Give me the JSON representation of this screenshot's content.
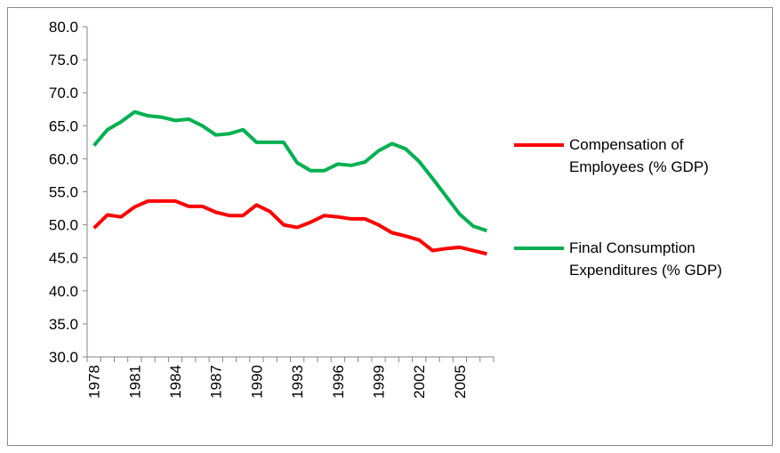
{
  "chart_data": {
    "type": "line",
    "categories": [
      "1978",
      null,
      null,
      "1981",
      null,
      null,
      "1984",
      null,
      null,
      "1987",
      null,
      null,
      "1990",
      null,
      null,
      "1993",
      null,
      null,
      "1996",
      null,
      null,
      "1999",
      null,
      null,
      "2002",
      null,
      null,
      "2005",
      null,
      null
    ],
    "series": [
      {
        "name": "Compensation of Employees (% GDP)",
        "color": "#ff0000",
        "values": [
          49.5,
          51.5,
          51.2,
          52.7,
          53.6,
          53.6,
          53.6,
          52.8,
          52.8,
          51.9,
          51.4,
          51.4,
          53.0,
          52.0,
          50.0,
          49.6,
          50.4,
          51.4,
          51.2,
          50.9,
          50.9,
          50.0,
          48.8,
          48.3,
          47.7,
          46.1,
          46.4,
          46.6,
          46.1,
          45.6
        ]
      },
      {
        "name": "Final Consumption Expenditures (% GDP)",
        "color": "#00b050",
        "values": [
          62.0,
          64.4,
          65.6,
          67.1,
          66.5,
          66.3,
          65.8,
          66.0,
          65.0,
          63.6,
          63.8,
          64.4,
          62.5,
          62.5,
          62.5,
          59.4,
          58.2,
          58.2,
          59.2,
          59.0,
          59.5,
          61.2,
          62.3,
          61.5,
          59.6,
          57.0,
          54.3,
          51.6,
          49.8,
          49.1
        ]
      }
    ],
    "ylim": [
      30,
      80
    ],
    "yticks": [
      {
        "value": 30,
        "label": "30.0"
      },
      {
        "value": 35,
        "label": "35.0"
      },
      {
        "value": 40,
        "label": "40.0"
      },
      {
        "value": 45,
        "label": "45.0"
      },
      {
        "value": 50,
        "label": "50.0"
      },
      {
        "value": 55,
        "label": "55.0"
      },
      {
        "value": 60,
        "label": "60.0"
      },
      {
        "value": 65,
        "label": "65.0"
      },
      {
        "value": 70,
        "label": "70.0"
      },
      {
        "value": 75,
        "label": "75.0"
      },
      {
        "value": 80,
        "label": "80.0"
      }
    ],
    "grid": false,
    "legend": "right"
  }
}
